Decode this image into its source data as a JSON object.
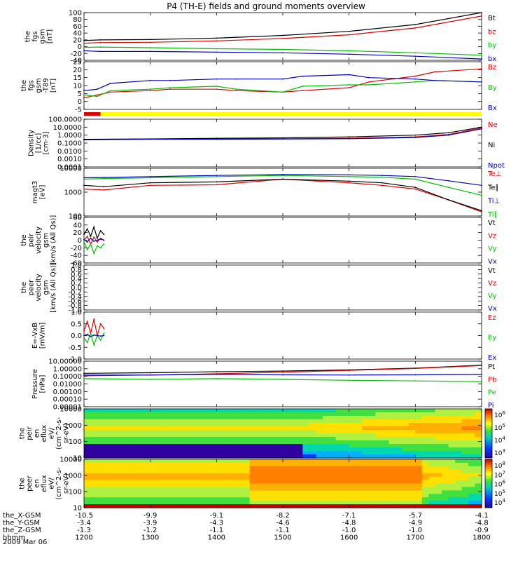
{
  "title": "P4 (TH-E) fields and ground moments overview",
  "date_label": "2009 Mar 06",
  "orbit_rows": [
    {
      "label": "the_X-GSM",
      "values": [
        "-10.5",
        "-9.9",
        "-9.1",
        "-8.2",
        "-7.1",
        "-5.7",
        "-4.1"
      ]
    },
    {
      "label": "the_Y-GSM",
      "values": [
        "-3.4",
        "-3.9",
        "-4.3",
        "-4.6",
        "-4.8",
        "-4.9",
        "-4.8"
      ]
    },
    {
      "label": "the_Z-GSM",
      "values": [
        "-1.3",
        "-1.2",
        "-1.1",
        "-1.1",
        "-1.0",
        "-1.0",
        "-0.9"
      ]
    },
    {
      "label": "hhmm",
      "values": [
        "1200",
        "1300",
        "1400",
        "1500",
        "1600",
        "1700",
        "1800"
      ]
    }
  ],
  "colors": {
    "black": "#000000",
    "red": "#e00000",
    "green": "#00c000",
    "blue": "#0000c0",
    "yellow": "#ffff00"
  },
  "chart_data": [
    {
      "id": "p1",
      "type": "line",
      "ylabel": [
        "the",
        "fgs",
        "gsm",
        "[nT]"
      ],
      "yticks": [
        "100",
        "80",
        "60",
        "40",
        "20",
        "0",
        "-20",
        "-40"
      ],
      "ylim": [
        -40,
        100
      ],
      "series": [
        {
          "name": "Bt",
          "color": "#000000",
          "x": [
            1200,
            1225,
            1300,
            1400,
            1500,
            1600,
            1700,
            1800
          ],
          "values": [
            18,
            20,
            21,
            25,
            33,
            45,
            65,
            100
          ]
        },
        {
          "name": "bz",
          "color": "#e00000",
          "x": [
            1200,
            1225,
            1300,
            1400,
            1500,
            1600,
            1700,
            1800
          ],
          "values": [
            10,
            12,
            13,
            17,
            24,
            35,
            55,
            90
          ]
        },
        {
          "name": "by",
          "color": "#00c000",
          "x": [
            1200,
            1225,
            1300,
            1400,
            1500,
            1600,
            1700,
            1800
          ],
          "values": [
            -2,
            -1,
            -3,
            -6,
            -8,
            -12,
            -18,
            -25
          ]
        },
        {
          "name": "bx",
          "color": "#0000c0",
          "x": [
            1200,
            1225,
            1300,
            1400,
            1500,
            1600,
            1700,
            1800
          ],
          "values": [
            -12,
            -14,
            -14,
            -16,
            -18,
            -22,
            -28,
            -36
          ]
        }
      ]
    },
    {
      "id": "p2",
      "type": "line",
      "ylabel": [
        "the",
        "fgs",
        "gsm",
        "-T89",
        "[nT]"
      ],
      "yticks": [
        "25",
        "20",
        "15",
        "10",
        "5",
        "0",
        "-5"
      ],
      "ylim": [
        -8,
        25
      ],
      "series": [
        {
          "name": "Bz",
          "color": "#e00000",
          "x": [
            1200,
            1220,
            1240,
            1300,
            1330,
            1400,
            1430,
            1500,
            1530,
            1600,
            1630,
            1700,
            1730,
            1800
          ],
          "values": [
            0,
            2,
            4,
            5,
            6,
            6,
            5,
            4,
            5,
            7,
            11,
            15,
            18,
            20
          ]
        },
        {
          "name": "By",
          "color": "#00c000",
          "x": [
            1200,
            1220,
            1240,
            1300,
            1330,
            1400,
            1430,
            1500,
            1530,
            1600,
            1630,
            1700,
            1730,
            1800
          ],
          "values": [
            2,
            1,
            5,
            6,
            7,
            8,
            6,
            4,
            8,
            9,
            9,
            11,
            12,
            11
          ]
        },
        {
          "name": "Bx",
          "color": "#0000c0",
          "x": [
            1200,
            1220,
            1240,
            1300,
            1330,
            1400,
            1430,
            1500,
            1530,
            1600,
            1630,
            1700,
            1730,
            1800
          ],
          "values": [
            5,
            6,
            10,
            12,
            12,
            13,
            13,
            13,
            15,
            16,
            14,
            13,
            12,
            11
          ]
        }
      ]
    },
    {
      "id": "p3",
      "type": "line",
      "ylabel": [
        "Density",
        "[1/cc]",
        "[cm-3]"
      ],
      "yticks": [
        "100.0000",
        "10.0000",
        "1.0000",
        "0.1000",
        "0.0100",
        "0.0010",
        "0.0001"
      ],
      "ylim": [
        0.0001,
        100
      ],
      "yscale": "log",
      "series": [
        {
          "name": "Ne",
          "color": "#e00000",
          "x": [
            1200,
            1300,
            1400,
            1500,
            1600,
            1700,
            1750,
            1800
          ],
          "values": [
            0.3,
            0.32,
            0.35,
            0.35,
            0.4,
            0.6,
            1.2,
            8
          ]
        },
        {
          "name": "Ni",
          "color": "#000000",
          "x": [
            1200,
            1300,
            1400,
            1500,
            1600,
            1700,
            1750,
            1800
          ],
          "values": [
            0.3,
            0.33,
            0.4,
            0.45,
            0.6,
            1.0,
            2.0,
            10
          ]
        },
        {
          "name": "Npot",
          "color": "#0000c0",
          "x": [
            1200,
            1300,
            1400,
            1500,
            1600,
            1700,
            1750,
            1800
          ],
          "values": [
            0.25,
            0.3,
            0.3,
            0.32,
            0.35,
            0.5,
            1.0,
            6
          ]
        }
      ]
    },
    {
      "id": "p4",
      "type": "line",
      "ylabel": [
        "magt3",
        "[eV]"
      ],
      "yticks": [
        "10000",
        "1000",
        "100"
      ],
      "ylim": [
        50,
        10000
      ],
      "yscale": "log",
      "series": [
        {
          "name": "Te⊥",
          "color": "#e00000",
          "x": [
            1200,
            1230,
            1300,
            1400,
            1500,
            1600,
            1650,
            1700,
            1750,
            1800
          ],
          "values": [
            1000,
            900,
            1500,
            1600,
            3000,
            2000,
            1500,
            1000,
            300,
            80
          ]
        },
        {
          "name": "Te∥",
          "color": "#000000",
          "x": [
            1200,
            1230,
            1300,
            1400,
            1500,
            1600,
            1650,
            1700,
            1750,
            1800
          ],
          "values": [
            1500,
            1300,
            2000,
            2200,
            3000,
            2400,
            2000,
            1200,
            300,
            90
          ]
        },
        {
          "name": "Ti⊥",
          "color": "#0000c0",
          "x": [
            1200,
            1230,
            1300,
            1400,
            1500,
            1600,
            1650,
            1700,
            1750,
            1800
          ],
          "values": [
            3500,
            3600,
            4000,
            4500,
            5000,
            4800,
            4500,
            4000,
            2500,
            1500
          ]
        },
        {
          "name": "Ti∥",
          "color": "#00c000",
          "x": [
            1200,
            1230,
            1300,
            1400,
            1500,
            1600,
            1650,
            1700,
            1750,
            1800
          ],
          "values": [
            3000,
            3200,
            3500,
            4000,
            4500,
            4000,
            3700,
            3000,
            1200,
            500
          ]
        }
      ]
    },
    {
      "id": "p5",
      "type": "line",
      "ylabel": [
        "the",
        "peir",
        "velocity",
        "gsm",
        "[km/s (All Qs)]"
      ],
      "yticks": [
        "60",
        "40",
        "20",
        "0",
        "-20",
        "-40",
        "-60"
      ],
      "ylim": [
        -60,
        60
      ],
      "series": [
        {
          "name": "Vt",
          "color": "#000000",
          "x": [
            1200,
            1205,
            1210,
            1215,
            1220,
            1225,
            1230
          ],
          "values": [
            15,
            30,
            10,
            35,
            5,
            25,
            15
          ]
        },
        {
          "name": "Vz",
          "color": "#e00000",
          "x": [
            1200,
            1205,
            1210,
            1215,
            1220,
            1225,
            1230
          ],
          "values": [
            0,
            10,
            -10,
            8,
            -5,
            5,
            0
          ]
        },
        {
          "name": "Vy",
          "color": "#00c000",
          "x": [
            1200,
            1205,
            1210,
            1215,
            1220,
            1225,
            1230
          ],
          "values": [
            -5,
            -25,
            -10,
            -35,
            -15,
            -20,
            -10
          ]
        },
        {
          "name": "Vx",
          "color": "#0000c0",
          "x": [
            1200,
            1205,
            1210,
            1215,
            1220,
            1225,
            1230
          ],
          "values": [
            2,
            -5,
            5,
            -3,
            0,
            3,
            0
          ]
        }
      ]
    },
    {
      "id": "p6",
      "type": "line",
      "ylabel": [
        "the",
        "peer",
        "velocity",
        "gsm",
        "[km/s (All Qs)]"
      ],
      "yticks": [
        "1.0",
        "0.8",
        "0.6",
        "0.4",
        "0.2",
        "0.0",
        "-0.2",
        "-0.4",
        "-0.6",
        "-0.8",
        "-1.0"
      ],
      "ylim": [
        -1,
        1
      ],
      "series": [
        {
          "name": "Vt",
          "color": "#000000",
          "x": [],
          "values": []
        },
        {
          "name": "Vz",
          "color": "#e00000",
          "x": [],
          "values": []
        },
        {
          "name": "Vy",
          "color": "#00c000",
          "x": [],
          "values": []
        },
        {
          "name": "Vx",
          "color": "#0000c0",
          "x": [],
          "values": []
        }
      ]
    },
    {
      "id": "p7",
      "type": "line",
      "ylabel": [
        "E=-VxB",
        "[mV/m]"
      ],
      "yticks": [
        "1.0",
        "0.5",
        "0.0",
        "-0.5",
        "-1.0"
      ],
      "ylim": [
        -1,
        1
      ],
      "series": [
        {
          "name": "Ez",
          "color": "#e00000",
          "x": [
            1200,
            1205,
            1210,
            1215,
            1220,
            1225,
            1230
          ],
          "values": [
            0.2,
            0.6,
            0.1,
            0.7,
            0.0,
            0.5,
            0.3
          ]
        },
        {
          "name": "Ey",
          "color": "#00c000",
          "x": [
            1200,
            1205,
            1210,
            1215,
            1220,
            1225,
            1230
          ],
          "values": [
            -0.1,
            -0.3,
            0.1,
            -0.4,
            0.0,
            -0.2,
            0.1
          ]
        },
        {
          "name": "Ex",
          "color": "#0000c0",
          "x": [
            1200,
            1205,
            1210,
            1215,
            1220,
            1225,
            1230
          ],
          "values": [
            0.0,
            0.05,
            -0.05,
            0.02,
            0.0,
            -0.02,
            0.0
          ]
        }
      ]
    },
    {
      "id": "p8",
      "type": "line",
      "ylabel": [
        "Pressure",
        "[nPa]"
      ],
      "yticks": [
        "10.00000",
        "1.00000",
        "0.10000",
        "0.01000",
        "0.00100",
        "0.00010",
        "0.00001"
      ],
      "ylim": [
        1e-05,
        10
      ],
      "yscale": "log",
      "series": [
        {
          "name": "Pt",
          "color": "#000000",
          "x": [
            1200,
            1300,
            1400,
            1500,
            1600,
            1700,
            1800
          ],
          "values": [
            0.25,
            0.3,
            0.4,
            0.5,
            0.7,
            1.2,
            3
          ]
        },
        {
          "name": "Pb",
          "color": "#e00000",
          "x": [
            1200,
            1300,
            1400,
            1500,
            1600,
            1700,
            1800
          ],
          "values": [
            0.12,
            0.15,
            0.22,
            0.35,
            0.6,
            1.1,
            2.6
          ]
        },
        {
          "name": "Pe",
          "color": "#00c000",
          "x": [
            1200,
            1300,
            1400,
            1500,
            1600,
            1700,
            1800
          ],
          "values": [
            0.05,
            0.04,
            0.05,
            0.04,
            0.03,
            0.025,
            0.02
          ]
        },
        {
          "name": "Pi",
          "color": "#0000c0",
          "x": [
            1200,
            1300,
            1400,
            1500,
            1600,
            1700,
            1800
          ],
          "values": [
            0.15,
            0.15,
            0.18,
            0.16,
            0.15,
            0.16,
            0.18
          ]
        }
      ]
    },
    {
      "id": "p9",
      "type": "heatmap",
      "ylabel": [
        "the",
        "peir",
        "en",
        "eflux",
        "eV/",
        "(cm^2-s-",
        "sr-eV)"
      ],
      "yticks": [
        "10000",
        "1000",
        "100",
        "10"
      ],
      "ylim": [
        8,
        20000
      ],
      "yscale": "log",
      "colorbar": {
        "ticks": [
          "10^6",
          "10^5",
          "10^4",
          "10^3"
        ]
      }
    },
    {
      "id": "p10",
      "type": "heatmap",
      "ylabel": [
        "the",
        "peer",
        "en",
        "eflux",
        "eV/",
        "(cm^2-s-",
        "sr-eV)"
      ],
      "yticks": [
        "10000",
        "1000",
        "100",
        "10"
      ],
      "ylim": [
        8,
        20000
      ],
      "yscale": "log",
      "colorbar": {
        "ticks": [
          "10^8",
          "10^7",
          "10^6",
          "10^5",
          "10^4"
        ]
      }
    }
  ]
}
